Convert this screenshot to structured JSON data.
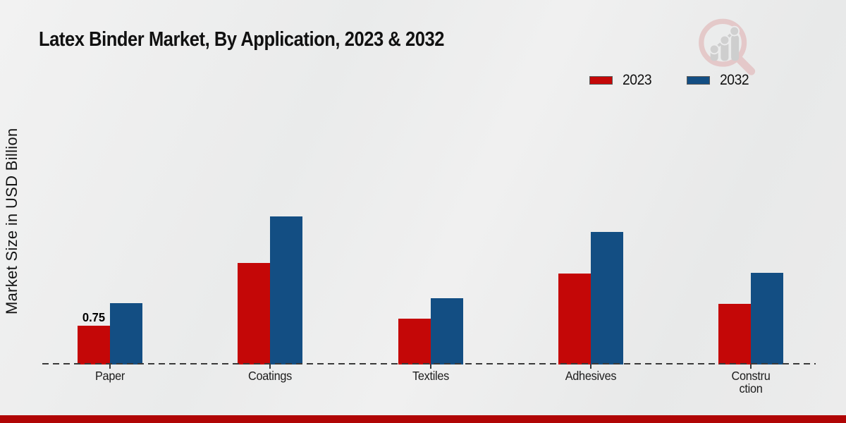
{
  "title": "Latex Binder Market, By Application, 2023 & 2032",
  "y_axis_label": "Market Size in USD Billion",
  "colors": {
    "series_2023": "#c40707",
    "series_2032": "#134e83",
    "footer_bar": "#b00505",
    "baseline": "#3a3a3a",
    "background": "#ebecec",
    "title_text": "#111111"
  },
  "legend": {
    "position": "top-right",
    "items": [
      {
        "label": "2023",
        "color": "#c40707"
      },
      {
        "label": "2032",
        "color": "#134e83"
      }
    ]
  },
  "watermark_icon": "magnifier-growth-chart-logo",
  "chart_data": {
    "type": "bar",
    "title": "Latex Binder Market, By Application, 2023 & 2032",
    "xlabel": "",
    "ylabel": "Market Size in USD Billion",
    "ylim": [
      0,
      3.2
    ],
    "grid": false,
    "y_axis_ticks_visible": false,
    "baseline_style": "dashed",
    "legend_position": "top-right",
    "categories": [
      "Paper",
      "Coatings",
      "Textiles",
      "Adhesives",
      "Construction"
    ],
    "category_display_lines": [
      [
        "Paper"
      ],
      [
        "Coatings"
      ],
      [
        "Textiles"
      ],
      [
        "Adhesives"
      ],
      [
        "Constru",
        "ction"
      ]
    ],
    "series": [
      {
        "name": "2023",
        "color": "#c40707",
        "values": [
          0.75,
          1.96,
          0.89,
          1.76,
          1.17
        ]
      },
      {
        "name": "2032",
        "color": "#134e83",
        "values": [
          1.19,
          2.86,
          1.28,
          2.56,
          1.77
        ]
      }
    ],
    "data_labels": [
      {
        "series": "2023",
        "category": "Paper",
        "text": "0.75"
      }
    ]
  }
}
